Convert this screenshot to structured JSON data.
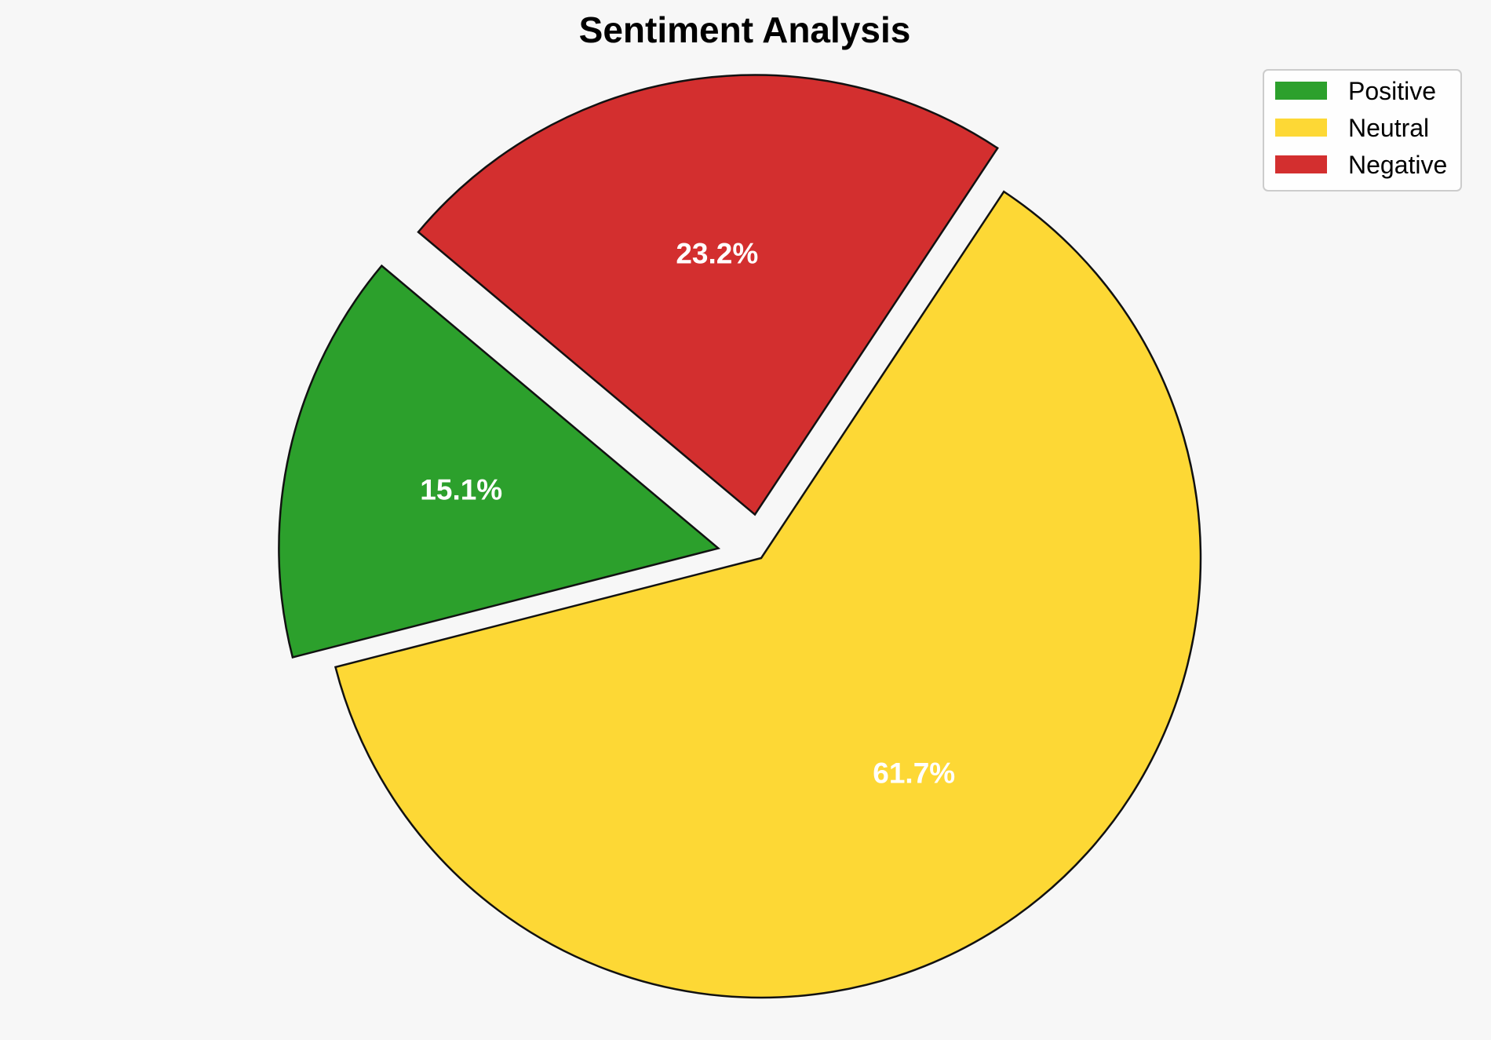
{
  "chart_data": {
    "type": "pie",
    "title": "Sentiment Analysis",
    "categories": [
      "Positive",
      "Neutral",
      "Negative"
    ],
    "values": [
      15.1,
      61.7,
      23.2
    ],
    "value_labels": [
      "15.1%",
      "61.7%",
      "23.2%"
    ],
    "colors": [
      "#2ca02c",
      "#fdd835",
      "#d32f2f"
    ],
    "exploded": [
      true,
      false,
      true
    ],
    "start_angle_deg": 140,
    "direction": "counterclockwise",
    "legend": {
      "placement": "top-right",
      "entries": [
        "Positive",
        "Neutral",
        "Negative"
      ]
    }
  }
}
